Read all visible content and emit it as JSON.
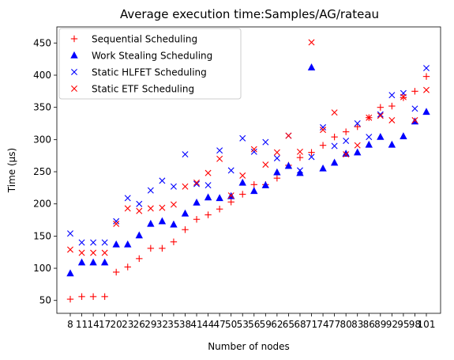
{
  "chart_data": {
    "type": "scatter",
    "title": "Average execution time:Samples/AG/rateau",
    "xlabel": "Number of nodes",
    "ylabel": "Time (µs)",
    "categories": [
      "8",
      "11",
      "14",
      "17",
      "20",
      "23",
      "26",
      "29",
      "32",
      "35",
      "38",
      "41",
      "44",
      "47",
      "50",
      "53",
      "56",
      "59",
      "62",
      "65",
      "68",
      "71",
      "74",
      "77",
      "80",
      "83",
      "86",
      "89",
      "92",
      "95",
      "98",
      "101"
    ],
    "ylim": [
      30,
      475
    ],
    "yticks": [
      50,
      100,
      150,
      200,
      250,
      300,
      350,
      400,
      450
    ],
    "legend_position": "top-left",
    "grid": false,
    "series": [
      {
        "name": "Sequential Scheduling",
        "marker": "plus",
        "color": "#ff0000",
        "points": [
          [
            0,
            52
          ],
          [
            1,
            56
          ],
          [
            2,
            56
          ],
          [
            3,
            56
          ],
          [
            4,
            94
          ],
          [
            5,
            102
          ],
          [
            6,
            115
          ],
          [
            7,
            131
          ],
          [
            8,
            131
          ],
          [
            9,
            141
          ],
          [
            10,
            160
          ],
          [
            11,
            176
          ],
          [
            12,
            183
          ],
          [
            13,
            192
          ],
          [
            14,
            203
          ],
          [
            15,
            215
          ],
          [
            16,
            230
          ],
          [
            17,
            230
          ],
          [
            18,
            240
          ],
          [
            19,
            260
          ],
          [
            20,
            272
          ],
          [
            21,
            280
          ],
          [
            22,
            291
          ],
          [
            23,
            304
          ],
          [
            24,
            312
          ],
          [
            25,
            320
          ],
          [
            26,
            334
          ],
          [
            27,
            350
          ],
          [
            28,
            352
          ],
          [
            29,
            365
          ],
          [
            30,
            375
          ],
          [
            31,
            398
          ]
        ]
      },
      {
        "name": "Work Stealing Scheduling",
        "marker": "triangle",
        "color": "#0000ff",
        "points": [
          [
            0,
            92
          ],
          [
            1,
            109
          ],
          [
            2,
            109
          ],
          [
            3,
            109
          ],
          [
            4,
            137
          ],
          [
            5,
            137
          ],
          [
            6,
            151
          ],
          [
            7,
            169
          ],
          [
            8,
            173
          ],
          [
            9,
            168
          ],
          [
            10,
            185
          ],
          [
            11,
            202
          ],
          [
            12,
            210
          ],
          [
            13,
            209
          ],
          [
            14,
            212
          ],
          [
            15,
            233
          ],
          [
            16,
            220
          ],
          [
            17,
            229
          ],
          [
            18,
            249
          ],
          [
            19,
            259
          ],
          [
            20,
            248
          ],
          [
            21,
            412
          ],
          [
            22,
            255
          ],
          [
            23,
            264
          ],
          [
            24,
            278
          ],
          [
            25,
            280
          ],
          [
            26,
            292
          ],
          [
            27,
            304
          ],
          [
            28,
            292
          ],
          [
            29,
            305
          ],
          [
            30,
            328
          ],
          [
            31,
            343
          ]
        ]
      },
      {
        "name": "Static HLFET Scheduling",
        "marker": "x",
        "color": "#0000ff",
        "points": [
          [
            0,
            154
          ],
          [
            1,
            140
          ],
          [
            2,
            140
          ],
          [
            3,
            140
          ],
          [
            4,
            173
          ],
          [
            5,
            209
          ],
          [
            6,
            200
          ],
          [
            7,
            221
          ],
          [
            8,
            236
          ],
          [
            9,
            227
          ],
          [
            10,
            277
          ],
          [
            11,
            231
          ],
          [
            12,
            229
          ],
          [
            13,
            283
          ],
          [
            14,
            252
          ],
          [
            15,
            302
          ],
          [
            16,
            281
          ],
          [
            17,
            296
          ],
          [
            18,
            271
          ],
          [
            19,
            306
          ],
          [
            20,
            252
          ],
          [
            21,
            273
          ],
          [
            22,
            319
          ],
          [
            23,
            290
          ],
          [
            24,
            298
          ],
          [
            25,
            325
          ],
          [
            26,
            304
          ],
          [
            27,
            339
          ],
          [
            28,
            369
          ],
          [
            29,
            372
          ],
          [
            30,
            348
          ],
          [
            31,
            411
          ]
        ]
      },
      {
        "name": "Static ETF Scheduling",
        "marker": "x",
        "color": "#ff0000",
        "points": [
          [
            0,
            129
          ],
          [
            1,
            124
          ],
          [
            2,
            124
          ],
          [
            3,
            124
          ],
          [
            4,
            169
          ],
          [
            5,
            193
          ],
          [
            6,
            189
          ],
          [
            7,
            193
          ],
          [
            8,
            194
          ],
          [
            9,
            199
          ],
          [
            10,
            227
          ],
          [
            11,
            233
          ],
          [
            12,
            248
          ],
          [
            13,
            270
          ],
          [
            14,
            213
          ],
          [
            15,
            244
          ],
          [
            16,
            285
          ],
          [
            17,
            261
          ],
          [
            18,
            280
          ],
          [
            19,
            306
          ],
          [
            20,
            281
          ],
          [
            21,
            451
          ],
          [
            22,
            315
          ],
          [
            23,
            342
          ],
          [
            24,
            277
          ],
          [
            25,
            291
          ],
          [
            26,
            334
          ],
          [
            27,
            337
          ],
          [
            28,
            330
          ],
          [
            29,
            366
          ],
          [
            30,
            330
          ],
          [
            31,
            377
          ]
        ]
      }
    ]
  }
}
